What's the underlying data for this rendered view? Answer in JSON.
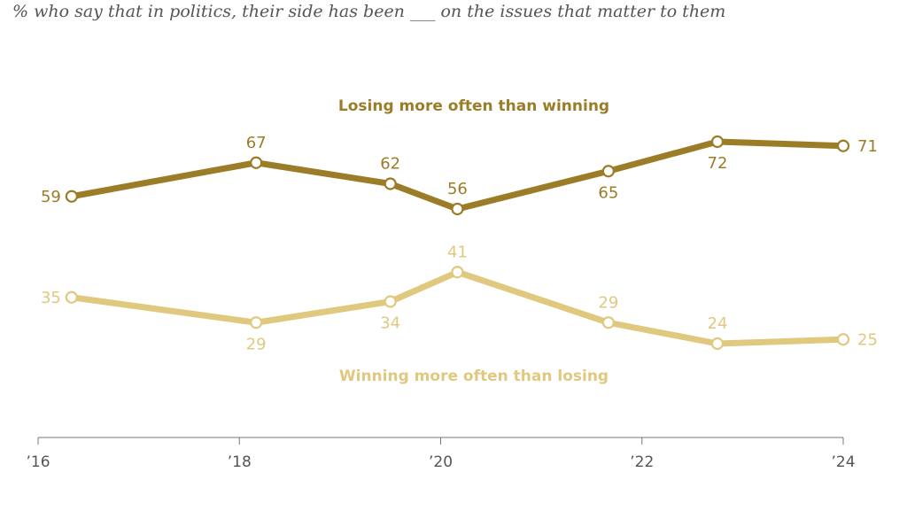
{
  "subtitle": "% who say that in politics, their side has been ___ on the issues that matter to them",
  "chart_data": {
    "type": "line",
    "x_ticks": [
      "’16",
      "’18",
      "’20",
      "’22",
      "’24"
    ],
    "series": [
      {
        "name": "Losing more often than winning",
        "color": "#9c7d27",
        "points": [
          {
            "date": "2016-05",
            "value": 59
          },
          {
            "date": "2018-03",
            "value": 67
          },
          {
            "date": "2019-07",
            "value": 62
          },
          {
            "date": "2020-03",
            "value": 56
          },
          {
            "date": "2021-09",
            "value": 65
          },
          {
            "date": "2022-10",
            "value": 72
          },
          {
            "date": "2024-01",
            "value": 71
          }
        ]
      },
      {
        "name": "Winning more often than losing",
        "color": "#e1c87f",
        "points": [
          {
            "date": "2016-05",
            "value": 35
          },
          {
            "date": "2018-03",
            "value": 29
          },
          {
            "date": "2019-07",
            "value": 34
          },
          {
            "date": "2020-03",
            "value": 41
          },
          {
            "date": "2021-09",
            "value": 29
          },
          {
            "date": "2022-10",
            "value": 24
          },
          {
            "date": "2024-01",
            "value": 25
          }
        ]
      }
    ],
    "ylim": [
      0,
      100
    ],
    "grid": false,
    "legend": "direct labels"
  }
}
